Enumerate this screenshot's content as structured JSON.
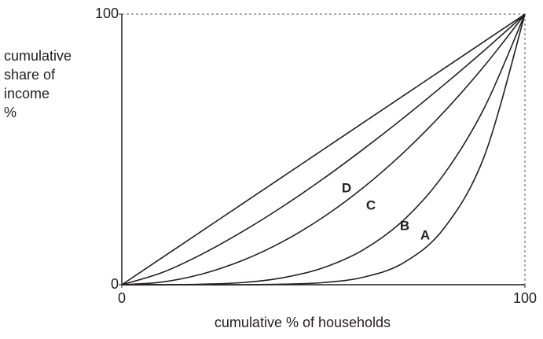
{
  "chart_data": {
    "type": "line",
    "ylabel": [
      "cumulative",
      "share of",
      "income",
      "%"
    ],
    "xlabel": "cumulative % of households",
    "x": [
      0,
      10,
      20,
      30,
      40,
      50,
      60,
      70,
      80,
      90,
      100
    ],
    "xlim": [
      0,
      100
    ],
    "ylim": [
      0,
      100
    ],
    "xticks": [
      0,
      100
    ],
    "yticks": [
      0,
      100
    ],
    "series": [
      {
        "color": "#231f20",
        "values": [
          0,
          10,
          20,
          30,
          40,
          50,
          60,
          70,
          80,
          90,
          100
        ]
      },
      {
        "name": "D",
        "color": "#231f20",
        "values": [
          0,
          4.5,
          11.4,
          19.7,
          29,
          39.2,
          50.2,
          61.8,
          74,
          86.7,
          100
        ]
      },
      {
        "name": "C",
        "color": "#231f20",
        "values": [
          0,
          1,
          4,
          9,
          16,
          25,
          36,
          49,
          64,
          81,
          100
        ]
      },
      {
        "name": "B",
        "color": "#231f20",
        "values": [
          0,
          0,
          0.2,
          0.8,
          2.6,
          6.3,
          13,
          24,
          41,
          65.6,
          100
        ]
      },
      {
        "name": "A",
        "color": "#231f20",
        "values": [
          0,
          0,
          0,
          0,
          0.2,
          0.8,
          2.8,
          8.2,
          21,
          47.8,
          100
        ]
      }
    ]
  }
}
